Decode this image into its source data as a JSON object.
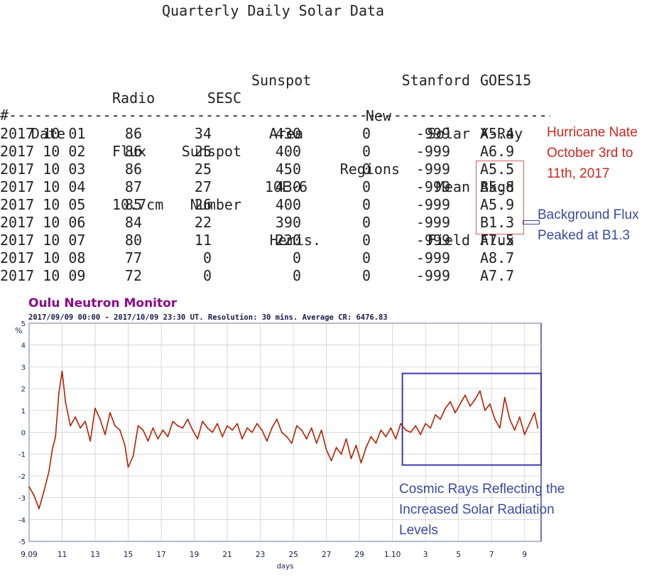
{
  "table": {
    "title": "Quarterly Daily Solar Data",
    "headers": {
      "date": "Date",
      "radio_flux": [
        "Radio",
        "Flux",
        "10.7cm"
      ],
      "sesc": [
        "SESC",
        "Sunspot",
        "Number"
      ],
      "sunspot_area": [
        "Sunspot",
        "Area",
        "10E-6",
        "Hemis."
      ],
      "new_regions": [
        "New",
        "Regions"
      ],
      "stanford": [
        "Stanford",
        "Solar",
        "Mean",
        "Field"
      ],
      "goes15": [
        "GOES15",
        "X-Ray",
        "Bkgd",
        "Flux"
      ]
    },
    "divider": "#---------------------------------------------------------------------------------",
    "rows": [
      {
        "date": "2017 10 01",
        "radio_flux": "86",
        "sunspot_number": "34",
        "sunspot_area": "430",
        "new_regions": "0",
        "solar_field": "-999",
        "xray_flux": "A5.4"
      },
      {
        "date": "2017 10 02",
        "radio_flux": "86",
        "sunspot_number": "25",
        "sunspot_area": "400",
        "new_regions": "0",
        "solar_field": "-999",
        "xray_flux": "A6.9"
      },
      {
        "date": "2017 10 03",
        "radio_flux": "86",
        "sunspot_number": "25",
        "sunspot_area": "450",
        "new_regions": "0",
        "solar_field": "-999",
        "xray_flux": "A5.5"
      },
      {
        "date": "2017 10 04",
        "radio_flux": "87",
        "sunspot_number": "27",
        "sunspot_area": "430",
        "new_regions": "0",
        "solar_field": "-999",
        "xray_flux": "A5.8"
      },
      {
        "date": "2017 10 05",
        "radio_flux": "85",
        "sunspot_number": "26",
        "sunspot_area": "400",
        "new_regions": "0",
        "solar_field": "-999",
        "xray_flux": "A5.9"
      },
      {
        "date": "2017 10 06",
        "radio_flux": "84",
        "sunspot_number": "22",
        "sunspot_area": "390",
        "new_regions": "0",
        "solar_field": "-999",
        "xray_flux": "B1.3"
      },
      {
        "date": "2017 10 07",
        "radio_flux": "80",
        "sunspot_number": "11",
        "sunspot_area": "220",
        "new_regions": "0",
        "solar_field": "-999",
        "xray_flux": "A7.5"
      },
      {
        "date": "2017 10 08",
        "radio_flux": "77",
        "sunspot_number": "0",
        "sunspot_area": "0",
        "new_regions": "0",
        "solar_field": "-999",
        "xray_flux": "A8.7"
      },
      {
        "date": "2017 10 09",
        "radio_flux": "72",
        "sunspot_number": "0",
        "sunspot_area": "0",
        "new_regions": "0",
        "solar_field": "-999",
        "xray_flux": "A7.7"
      }
    ]
  },
  "annotations": {
    "hurricane": "Hurricane Nate October 3rd to 11th, 2017",
    "background_flux": "Background Flux Peaked at B1.3",
    "cosmic_rays": "Cosmic Rays Reflecting the Increased Solar Radiation Levels"
  },
  "colors": {
    "hurricane_text": "#c8281e",
    "annotation_blue": "#3a4aa0",
    "series_line": "#b22200",
    "chart_title": "#8b0a8b",
    "chart_frame": "#1a1a8a"
  },
  "chart_data": {
    "type": "line",
    "title": "Oulu Neutron Monitor",
    "subtitle": "2017/09/09  00:00 - 2017/10/09  23:30 UT. Resolution: 30 mins. Average CR: 6476.83",
    "ylabel": "%",
    "xlabel": "days",
    "ylim": [
      -5,
      5
    ],
    "yticks": [
      -5,
      -4,
      -3,
      -2,
      -1,
      0,
      1,
      2,
      3,
      4,
      5
    ],
    "xlim": [
      0,
      31
    ],
    "xticks": [
      {
        "value": 0,
        "label": "9.09"
      },
      {
        "value": 2,
        "label": "11"
      },
      {
        "value": 4,
        "label": "13"
      },
      {
        "value": 6,
        "label": "15"
      },
      {
        "value": 8,
        "label": "17"
      },
      {
        "value": 10,
        "label": "19"
      },
      {
        "value": 12,
        "label": "21"
      },
      {
        "value": 14,
        "label": "23"
      },
      {
        "value": 16,
        "label": "25"
      },
      {
        "value": 18,
        "label": "27"
      },
      {
        "value": 20,
        "label": "29"
      },
      {
        "value": 22,
        "label": "1.10"
      },
      {
        "value": 24,
        "label": "3"
      },
      {
        "value": 26,
        "label": "5"
      },
      {
        "value": 28,
        "label": "7"
      },
      {
        "value": 30,
        "label": "9"
      }
    ],
    "grid": true,
    "highlight": {
      "x_start": 22.6,
      "x_end": 31,
      "y_start": -1.5,
      "y_end": 2.7
    },
    "series": [
      {
        "x": [
          0,
          0.3,
          0.6,
          0.9,
          1.2,
          1.4,
          1.6,
          1.8,
          2.0,
          2.2,
          2.5,
          2.8,
          3.1,
          3.4,
          3.7,
          4.0,
          4.3,
          4.6,
          4.9,
          5.2,
          5.5,
          5.8,
          6.0,
          6.3,
          6.6,
          6.9,
          7.2,
          7.5,
          7.8,
          8.1,
          8.4,
          8.7,
          9.0,
          9.3,
          9.6,
          9.9,
          10.2,
          10.5,
          10.8,
          11.1,
          11.4,
          11.7,
          12.0,
          12.3,
          12.6,
          12.9,
          13.2,
          13.5,
          13.8,
          14.1,
          14.4,
          14.7,
          15.0,
          15.3,
          15.6,
          15.9,
          16.2,
          16.5,
          16.8,
          17.1,
          17.4,
          17.7,
          18.0,
          18.3,
          18.6,
          18.9,
          19.2,
          19.5,
          19.8,
          20.1,
          20.4,
          20.7,
          21.0,
          21.3,
          21.6,
          21.9,
          22.2,
          22.5,
          22.8,
          23.1,
          23.4,
          23.7,
          24.0,
          24.3,
          24.6,
          24.9,
          25.2,
          25.5,
          25.8,
          26.1,
          26.4,
          26.7,
          27.0,
          27.3,
          27.6,
          27.9,
          28.2,
          28.5,
          28.8,
          29.1,
          29.4,
          29.7,
          30.0,
          30.3,
          30.6,
          30.8
        ],
        "y": [
          -2.5,
          -2.9,
          -3.5,
          -2.7,
          -1.8,
          -0.8,
          -0.2,
          1.8,
          2.8,
          1.4,
          0.3,
          0.7,
          0.2,
          0.5,
          -0.4,
          1.1,
          0.6,
          -0.1,
          0.9,
          0.3,
          0.1,
          -0.6,
          -1.6,
          -1.1,
          0.3,
          0.1,
          -0.4,
          0.2,
          -0.3,
          0.1,
          -0.2,
          0.5,
          0.3,
          0.2,
          0.6,
          0.1,
          -0.3,
          0.5,
          0.2,
          0.0,
          0.4,
          -0.2,
          0.3,
          0.1,
          0.4,
          -0.3,
          0.2,
          0.0,
          0.4,
          0.1,
          -0.4,
          0.2,
          0.6,
          0.0,
          -0.2,
          -0.5,
          0.3,
          0.1,
          -0.3,
          0.2,
          -0.5,
          0.1,
          -0.8,
          -1.3,
          -0.7,
          -1.0,
          -0.3,
          -1.2,
          -0.6,
          -1.4,
          -0.7,
          -0.2,
          -0.5,
          0.1,
          -0.2,
          0.2,
          -0.3,
          0.4,
          0.1,
          0.0,
          0.3,
          -0.1,
          0.4,
          0.2,
          0.8,
          0.6,
          1.1,
          1.4,
          0.9,
          1.3,
          1.7,
          1.2,
          1.5,
          1.9,
          1.0,
          1.3,
          0.6,
          0.2,
          1.6,
          0.6,
          0.1,
          0.7,
          -0.1,
          0.4,
          0.9,
          0.2
        ]
      }
    ]
  }
}
